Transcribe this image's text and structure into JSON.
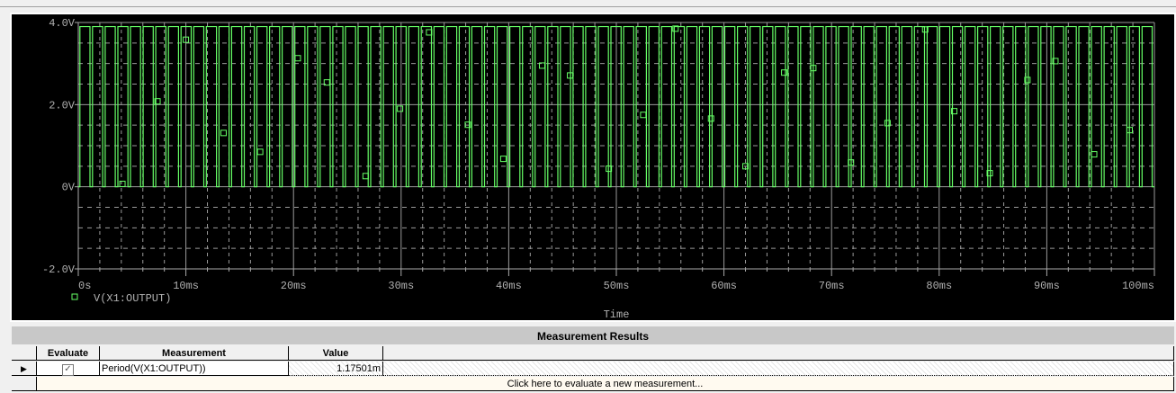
{
  "chart_data": {
    "type": "line",
    "xlabel": "Time",
    "ylabel": "",
    "x_unit": "ms",
    "xlim": [
      0,
      100
    ],
    "ylim": [
      -2.0,
      4.0
    ],
    "x_ticks": [
      "0s",
      "10ms",
      "20ms",
      "30ms",
      "40ms",
      "50ms",
      "60ms",
      "70ms",
      "80ms",
      "90ms",
      "100ms"
    ],
    "y_ticks": [
      "4.0V",
      "2.0V",
      "0V",
      "-2.0V"
    ],
    "grid": true,
    "background": "#000000",
    "series": [
      {
        "name": "V(X1:OUTPUT)",
        "color": "#66ff66",
        "waveform": "square",
        "high_v": 3.9,
        "low_v": 0,
        "period_ms": 1.17501,
        "marker_points": [
          [
            4.1,
            0.07
          ],
          [
            7.36,
            2.08
          ],
          [
            10.0,
            3.58
          ],
          [
            13.5,
            1.31
          ],
          [
            16.9,
            0.85
          ],
          [
            20.4,
            3.13
          ],
          [
            23.1,
            2.54
          ],
          [
            26.7,
            0.26
          ],
          [
            29.9,
            1.9
          ],
          [
            32.6,
            3.76
          ],
          [
            36.2,
            1.51
          ],
          [
            39.5,
            0.68
          ],
          [
            43.1,
            2.95
          ],
          [
            45.7,
            2.71
          ],
          [
            49.3,
            0.44
          ],
          [
            52.5,
            1.75
          ],
          [
            55.5,
            3.85
          ],
          [
            58.8,
            1.66
          ],
          [
            62.0,
            0.5
          ],
          [
            65.6,
            2.78
          ],
          [
            68.3,
            2.89
          ],
          [
            71.8,
            0.59
          ],
          [
            75.2,
            1.55
          ],
          [
            78.7,
            3.83
          ],
          [
            81.4,
            1.84
          ],
          [
            84.7,
            0.33
          ],
          [
            88.2,
            2.6
          ],
          [
            90.8,
            3.06
          ],
          [
            94.4,
            0.79
          ],
          [
            97.7,
            1.38
          ]
        ]
      }
    ]
  },
  "measurements": {
    "title": "Measurement Results",
    "headers": {
      "evaluate": "Evaluate",
      "measurement": "Measurement",
      "value": "Value"
    },
    "rows": [
      {
        "evaluate": true,
        "measurement": "Period(V(X1:OUTPUT))",
        "value": "1.17501m"
      }
    ],
    "new_row": "Click here to evaluate a new measurement..."
  }
}
